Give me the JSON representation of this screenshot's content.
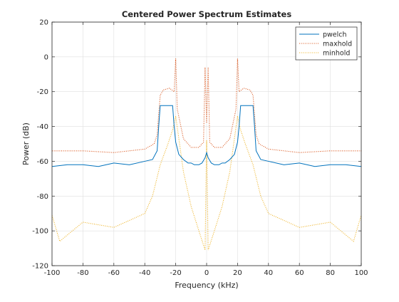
{
  "chart_data": {
    "type": "line",
    "title": "Centered Power Spectrum Estimates",
    "xlabel": "Frequency (kHz)",
    "ylabel": "Power (dB)",
    "xlim": [
      -100,
      100
    ],
    "ylim": [
      -120,
      20
    ],
    "xticks": [
      -100,
      -80,
      -60,
      -40,
      -20,
      0,
      20,
      40,
      60,
      80,
      100
    ],
    "yticks": [
      -120,
      -100,
      -80,
      -60,
      -40,
      -20,
      0,
      20
    ],
    "grid": true,
    "legend_position": "top-right",
    "series": [
      {
        "name": "pwelch",
        "color": "#0072BD",
        "style": "solid",
        "x": [
          -100,
          -90,
          -80,
          -70,
          -60,
          -50,
          -40,
          -35,
          -32,
          -31,
          -30,
          -28,
          -25,
          -22,
          -21,
          -20,
          -18,
          -15,
          -12,
          -10,
          -8,
          -5,
          -3,
          -1,
          0,
          1,
          3,
          5,
          8,
          10,
          12,
          15,
          18,
          20,
          21,
          22,
          25,
          28,
          30,
          31,
          32,
          35,
          40,
          50,
          60,
          70,
          80,
          90,
          100
        ],
        "y": [
          -63,
          -62,
          -62,
          -63,
          -61,
          -62,
          -60,
          -59,
          -54,
          -40,
          -28,
          -28,
          -28,
          -28,
          -40,
          -49,
          -56,
          -59,
          -61,
          -61,
          -62,
          -62,
          -61,
          -58,
          -55,
          -58,
          -61,
          -62,
          -62,
          -61,
          -61,
          -59,
          -56,
          -49,
          -40,
          -28,
          -28,
          -28,
          -28,
          -40,
          -54,
          -59,
          -60,
          -62,
          -61,
          -63,
          -62,
          -62,
          -63
        ]
      },
      {
        "name": "maxhold",
        "color": "#D95319",
        "style": "dotted",
        "x": [
          -100,
          -80,
          -60,
          -40,
          -34,
          -32,
          -31,
          -30,
          -28,
          -24,
          -21,
          -20,
          -19,
          -15,
          -10,
          -5,
          -2,
          -1,
          0,
          1,
          2,
          5,
          10,
          15,
          19,
          20,
          21,
          24,
          28,
          30,
          31,
          32,
          34,
          40,
          60,
          80,
          100
        ],
        "y": [
          -54,
          -54,
          -55,
          -53,
          -50,
          -45,
          -33,
          -22,
          -19,
          -18,
          -20,
          -1,
          -30,
          -47,
          -52,
          -52,
          -49,
          -6,
          -38,
          -6,
          -49,
          -52,
          -52,
          -47,
          -30,
          -1,
          -20,
          -18,
          -19,
          -22,
          -33,
          -45,
          -50,
          -53,
          -55,
          -54,
          -54
        ]
      },
      {
        "name": "minhold",
        "color": "#EDB120",
        "style": "dotted",
        "x": [
          -100,
          -95,
          -80,
          -60,
          -40,
          -35,
          -30,
          -25,
          -22,
          -21,
          -20,
          -15,
          -10,
          -5,
          -1,
          0,
          1,
          5,
          10,
          15,
          20,
          21,
          22,
          25,
          30,
          35,
          40,
          60,
          80,
          95,
          100
        ],
        "y": [
          -91,
          -106,
          -95,
          -98,
          -90,
          -80,
          -62,
          -50,
          -42,
          -38,
          -34,
          -66,
          -86,
          -100,
          -111,
          -48,
          -111,
          -100,
          -86,
          -66,
          -34,
          -38,
          -42,
          -50,
          -62,
          -80,
          -90,
          -98,
          -95,
          -106,
          -91
        ]
      }
    ]
  }
}
